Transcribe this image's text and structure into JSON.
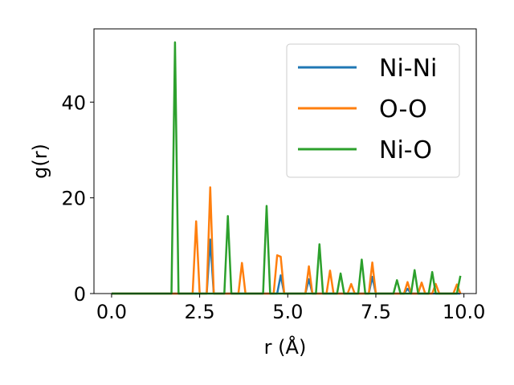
{
  "chart_data": {
    "type": "line",
    "xlabel": "r (Å)",
    "ylabel": "g(r)",
    "xlim": [
      -0.5,
      10.35
    ],
    "ylim": [
      0,
      55.3
    ],
    "xticks": [
      "0.0",
      "2.5",
      "5.0",
      "7.5",
      "10.0"
    ],
    "yticks": [
      "0",
      "20",
      "40"
    ],
    "grid": false,
    "legend_position": "top-right",
    "x": [
      0.0,
      0.1,
      0.2,
      0.3,
      0.4,
      0.5,
      0.6,
      0.7,
      0.8,
      0.9,
      1.0,
      1.1,
      1.2,
      1.3,
      1.4,
      1.5,
      1.6,
      1.7,
      1.8,
      1.9,
      2.0,
      2.1,
      2.2,
      2.3,
      2.4,
      2.5,
      2.6,
      2.7,
      2.8,
      2.9,
      3.0,
      3.1,
      3.2,
      3.3,
      3.4,
      3.5,
      3.6,
      3.7,
      3.8,
      3.9,
      4.0,
      4.1,
      4.2,
      4.3,
      4.4,
      4.5,
      4.6,
      4.7,
      4.8,
      4.9,
      5.0,
      5.1,
      5.2,
      5.3,
      5.4,
      5.5,
      5.6,
      5.7,
      5.8,
      5.9,
      6.0,
      6.1,
      6.2,
      6.3,
      6.4,
      6.5,
      6.6,
      6.7,
      6.8,
      6.9,
      7.0,
      7.1,
      7.2,
      7.3,
      7.4,
      7.5,
      7.6,
      7.7,
      7.8,
      7.9,
      8.0,
      8.1,
      8.2,
      8.3,
      8.4,
      8.5,
      8.6,
      8.7,
      8.8,
      8.9,
      9.0,
      9.1,
      9.2,
      9.3,
      9.4,
      9.5,
      9.6,
      9.7,
      9.8,
      9.9
    ],
    "series": [
      {
        "name": "Ni-Ni",
        "color": "#1f77b4",
        "values": [
          0,
          0,
          0,
          0,
          0,
          0,
          0,
          0,
          0,
          0,
          0,
          0,
          0,
          0,
          0,
          0,
          0,
          0,
          0,
          0,
          0,
          0,
          0,
          0,
          0,
          0,
          0,
          0,
          11.3,
          0,
          0,
          0,
          0,
          0,
          0,
          0,
          0,
          0,
          0,
          0,
          0,
          0,
          0,
          0,
          0,
          0,
          0,
          0,
          3.8,
          0,
          0,
          0,
          0,
          0,
          0,
          0,
          3.0,
          0,
          0,
          0,
          0,
          0,
          0,
          0,
          0,
          0,
          0,
          0,
          0,
          0,
          0,
          0,
          0,
          0,
          3.5,
          0,
          0,
          0,
          0,
          0,
          0,
          0,
          0,
          0,
          1.0,
          0,
          0,
          0,
          0,
          0,
          0,
          0,
          0,
          0,
          0,
          0,
          0,
          0,
          0,
          0
        ]
      },
      {
        "name": "O-O",
        "color": "#ff7f0e",
        "values": [
          0,
          0,
          0,
          0,
          0,
          0,
          0,
          0,
          0,
          0,
          0,
          0,
          0,
          0,
          0,
          0,
          0,
          0,
          0,
          0,
          0,
          0,
          0,
          0,
          15.1,
          0,
          0,
          0,
          22.2,
          0,
          0,
          0,
          0,
          0,
          0,
          0,
          0,
          6.4,
          0,
          0,
          0,
          0,
          0,
          0,
          0,
          0,
          0,
          8.0,
          7.7,
          0,
          0,
          0,
          0,
          0,
          0,
          0,
          5.7,
          0,
          0,
          0,
          0,
          0,
          4.8,
          0,
          0,
          0,
          0,
          0,
          2.0,
          0,
          0,
          0,
          0,
          0,
          6.5,
          0,
          0,
          0,
          0,
          0,
          0,
          0,
          0,
          0,
          2.4,
          0,
          0,
          0,
          2.3,
          0,
          0,
          0,
          2.0,
          0,
          0,
          0,
          0,
          0,
          1.9,
          0
        ]
      },
      {
        "name": "Ni-O",
        "color": "#2ca02c",
        "values": [
          0,
          0,
          0,
          0,
          0,
          0,
          0,
          0,
          0,
          0,
          0,
          0,
          0,
          0,
          0,
          0,
          0,
          0,
          52.5,
          0,
          0,
          0,
          0,
          0,
          0,
          0,
          0,
          0,
          0,
          0,
          0,
          0,
          0,
          16.2,
          0,
          0,
          0,
          0,
          0,
          0,
          0,
          0,
          0,
          0,
          18.3,
          0,
          0,
          0,
          0,
          0,
          0,
          0,
          0,
          0,
          0,
          0,
          0,
          0,
          0,
          10.3,
          0,
          0,
          0,
          0,
          0,
          4.2,
          0,
          0,
          0,
          0,
          0,
          7.1,
          0,
          0,
          0,
          0,
          0,
          0,
          0,
          0,
          0,
          2.8,
          0,
          0,
          0,
          0,
          4.9,
          0,
          0,
          0,
          0,
          4.5,
          0,
          0,
          0,
          0,
          0,
          0,
          0,
          3.7
        ]
      }
    ]
  }
}
